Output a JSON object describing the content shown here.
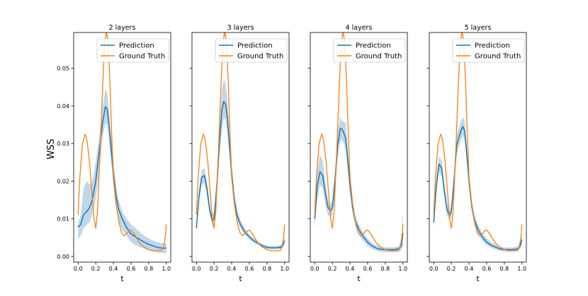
{
  "chart_data": {
    "type": "line",
    "ylabel": "WSS",
    "xlabel": "t",
    "xlim": [
      -0.05,
      1.05
    ],
    "ylim": [
      -0.0015,
      0.0595
    ],
    "xticks": [
      0.0,
      0.2,
      0.4,
      0.6,
      0.8,
      1.0
    ],
    "xtick_labels": [
      "0.0",
      "0.2",
      "0.4",
      "0.6",
      "0.8",
      "1.0"
    ],
    "yticks": [
      0.0,
      0.01,
      0.02,
      0.03,
      0.04,
      0.05
    ],
    "ytick_labels": [
      "0.00",
      "0.01",
      "0.02",
      "0.03",
      "0.04",
      "0.05"
    ],
    "legend": {
      "placement": "top-right",
      "entries": [
        "Prediction",
        "Ground Truth"
      ]
    },
    "colors": {
      "prediction": "#1f77b4",
      "ground_truth": "#ff7f0e",
      "band": "#a9c9e3"
    },
    "ground_truth": {
      "x": [
        0.0,
        0.02,
        0.05,
        0.08,
        0.1,
        0.13,
        0.16,
        0.18,
        0.2,
        0.22,
        0.25,
        0.28,
        0.3,
        0.32,
        0.34,
        0.36,
        0.38,
        0.4,
        0.43,
        0.46,
        0.49,
        0.52,
        0.55,
        0.58,
        0.6,
        0.63,
        0.66,
        0.7,
        0.75,
        0.8,
        0.85,
        0.9,
        0.95,
        0.97,
        0.99,
        1.0
      ],
      "y": [
        0.011,
        0.021,
        0.03,
        0.0325,
        0.031,
        0.025,
        0.016,
        0.01,
        0.0075,
        0.012,
        0.028,
        0.046,
        0.056,
        0.06,
        0.057,
        0.047,
        0.033,
        0.021,
        0.014,
        0.0095,
        0.0065,
        0.0055,
        0.006,
        0.0068,
        0.007,
        0.0062,
        0.005,
        0.0035,
        0.0025,
        0.0018,
        0.0015,
        0.0015,
        0.0016,
        0.0025,
        0.0055,
        0.0085
      ]
    },
    "panels": [
      {
        "title": "2 layers",
        "x": [
          0.0,
          0.03,
          0.06,
          0.1,
          0.13,
          0.16,
          0.2,
          0.24,
          0.28,
          0.31,
          0.33,
          0.35,
          0.37,
          0.4,
          0.43,
          0.46,
          0.5,
          0.55,
          0.6,
          0.65,
          0.7,
          0.75,
          0.8,
          0.85,
          0.9,
          0.95,
          1.0
        ],
        "prediction": [
          0.0078,
          0.0085,
          0.011,
          0.012,
          0.013,
          0.015,
          0.02,
          0.028,
          0.036,
          0.0398,
          0.0392,
          0.035,
          0.03,
          0.022,
          0.016,
          0.0125,
          0.01,
          0.0077,
          0.006,
          0.0052,
          0.0045,
          0.0038,
          0.0032,
          0.0028,
          0.0024,
          0.0022,
          0.0022
        ],
        "upper": [
          0.009,
          0.011,
          0.018,
          0.02,
          0.019,
          0.02,
          0.025,
          0.032,
          0.04,
          0.0445,
          0.0435,
          0.039,
          0.033,
          0.026,
          0.019,
          0.015,
          0.012,
          0.01,
          0.0085,
          0.0075,
          0.0065,
          0.0055,
          0.0048,
          0.0042,
          0.0038,
          0.0035,
          0.0035
        ],
        "lower": [
          0.0045,
          0.0055,
          0.0075,
          0.0085,
          0.009,
          0.011,
          0.015,
          0.023,
          0.032,
          0.0355,
          0.035,
          0.031,
          0.026,
          0.019,
          0.013,
          0.0095,
          0.007,
          0.0055,
          0.0038,
          0.003,
          0.0025,
          0.002,
          0.0016,
          0.0013,
          0.0011,
          0.0009,
          0.0009
        ]
      },
      {
        "title": "3 layers",
        "x": [
          0.0,
          0.03,
          0.06,
          0.09,
          0.12,
          0.15,
          0.18,
          0.2,
          0.23,
          0.26,
          0.29,
          0.31,
          0.33,
          0.35,
          0.37,
          0.4,
          0.43,
          0.46,
          0.5,
          0.55,
          0.6,
          0.65,
          0.7,
          0.75,
          0.8,
          0.85,
          0.9,
          0.95,
          0.98,
          1.0
        ],
        "prediction": [
          0.0075,
          0.016,
          0.021,
          0.0215,
          0.018,
          0.0125,
          0.0095,
          0.01,
          0.018,
          0.03,
          0.039,
          0.0412,
          0.0405,
          0.037,
          0.031,
          0.022,
          0.015,
          0.011,
          0.0085,
          0.0065,
          0.0052,
          0.0042,
          0.0035,
          0.0028,
          0.0024,
          0.0023,
          0.0023,
          0.0024,
          0.003,
          0.0042
        ],
        "upper": [
          0.009,
          0.018,
          0.023,
          0.0235,
          0.02,
          0.014,
          0.011,
          0.012,
          0.021,
          0.034,
          0.0445,
          0.047,
          0.046,
          0.042,
          0.035,
          0.025,
          0.017,
          0.0125,
          0.0095,
          0.0073,
          0.0058,
          0.0048,
          0.004,
          0.0033,
          0.0029,
          0.0028,
          0.0028,
          0.0029,
          0.0037,
          0.0052
        ],
        "lower": [
          0.0065,
          0.0145,
          0.019,
          0.0195,
          0.016,
          0.011,
          0.0082,
          0.0085,
          0.0155,
          0.026,
          0.034,
          0.0365,
          0.0365,
          0.033,
          0.028,
          0.0195,
          0.0135,
          0.0095,
          0.0075,
          0.0057,
          0.0045,
          0.0036,
          0.003,
          0.0024,
          0.002,
          0.0019,
          0.0019,
          0.002,
          0.0024,
          0.0034
        ]
      },
      {
        "title": "4 layers",
        "x": [
          0.0,
          0.03,
          0.06,
          0.09,
          0.12,
          0.15,
          0.18,
          0.2,
          0.23,
          0.26,
          0.29,
          0.31,
          0.33,
          0.35,
          0.37,
          0.4,
          0.43,
          0.46,
          0.5,
          0.55,
          0.6,
          0.65,
          0.7,
          0.75,
          0.8,
          0.85,
          0.9,
          0.95,
          0.98,
          1.0
        ],
        "prediction": [
          0.01,
          0.019,
          0.0225,
          0.0215,
          0.017,
          0.013,
          0.0122,
          0.013,
          0.02,
          0.0295,
          0.034,
          0.0338,
          0.0328,
          0.0315,
          0.027,
          0.019,
          0.013,
          0.0095,
          0.0072,
          0.0052,
          0.0038,
          0.0028,
          0.0022,
          0.0019,
          0.0018,
          0.0018,
          0.0018,
          0.002,
          0.0027,
          0.0062
        ],
        "upper": [
          0.012,
          0.0225,
          0.027,
          0.0255,
          0.02,
          0.015,
          0.0138,
          0.015,
          0.023,
          0.033,
          0.037,
          0.036,
          0.0358,
          0.0355,
          0.03,
          0.021,
          0.0148,
          0.011,
          0.0085,
          0.0063,
          0.0048,
          0.0036,
          0.0029,
          0.0025,
          0.0024,
          0.0024,
          0.0024,
          0.0027,
          0.004,
          0.0118
        ],
        "lower": [
          0.0075,
          0.0155,
          0.019,
          0.018,
          0.014,
          0.011,
          0.0105,
          0.011,
          0.017,
          0.026,
          0.0305,
          0.031,
          0.03,
          0.028,
          0.0235,
          0.0165,
          0.0112,
          0.008,
          0.0058,
          0.0041,
          0.0028,
          0.002,
          0.0015,
          0.0012,
          0.0011,
          0.0011,
          0.0011,
          0.0012,
          0.0016,
          0.0028
        ]
      },
      {
        "title": "5 layers",
        "x": [
          0.0,
          0.03,
          0.06,
          0.09,
          0.12,
          0.15,
          0.18,
          0.2,
          0.23,
          0.26,
          0.29,
          0.31,
          0.33,
          0.35,
          0.37,
          0.4,
          0.43,
          0.46,
          0.5,
          0.55,
          0.6,
          0.65,
          0.7,
          0.75,
          0.8,
          0.85,
          0.9,
          0.95,
          0.98,
          1.0
        ],
        "prediction": [
          0.009,
          0.019,
          0.0245,
          0.0235,
          0.0175,
          0.0125,
          0.0108,
          0.012,
          0.02,
          0.0295,
          0.032,
          0.0335,
          0.0345,
          0.0335,
          0.0285,
          0.02,
          0.0135,
          0.0098,
          0.0072,
          0.0052,
          0.0038,
          0.003,
          0.0025,
          0.002,
          0.0018,
          0.0018,
          0.0018,
          0.002,
          0.0027,
          0.0045
        ],
        "upper": [
          0.0105,
          0.021,
          0.0265,
          0.0255,
          0.0195,
          0.0142,
          0.0122,
          0.0138,
          0.022,
          0.032,
          0.0345,
          0.036,
          0.037,
          0.036,
          0.031,
          0.0218,
          0.015,
          0.0112,
          0.0085,
          0.0063,
          0.0048,
          0.0038,
          0.0032,
          0.0026,
          0.0024,
          0.0024,
          0.0024,
          0.0027,
          0.0036,
          0.0055
        ],
        "lower": [
          0.0075,
          0.017,
          0.0225,
          0.0215,
          0.0158,
          0.011,
          0.0095,
          0.0104,
          0.018,
          0.027,
          0.0295,
          0.031,
          0.032,
          0.031,
          0.026,
          0.0182,
          0.012,
          0.0085,
          0.006,
          0.0042,
          0.003,
          0.0023,
          0.0019,
          0.0015,
          0.0013,
          0.0013,
          0.0013,
          0.0014,
          0.002,
          0.0035
        ]
      }
    ]
  }
}
